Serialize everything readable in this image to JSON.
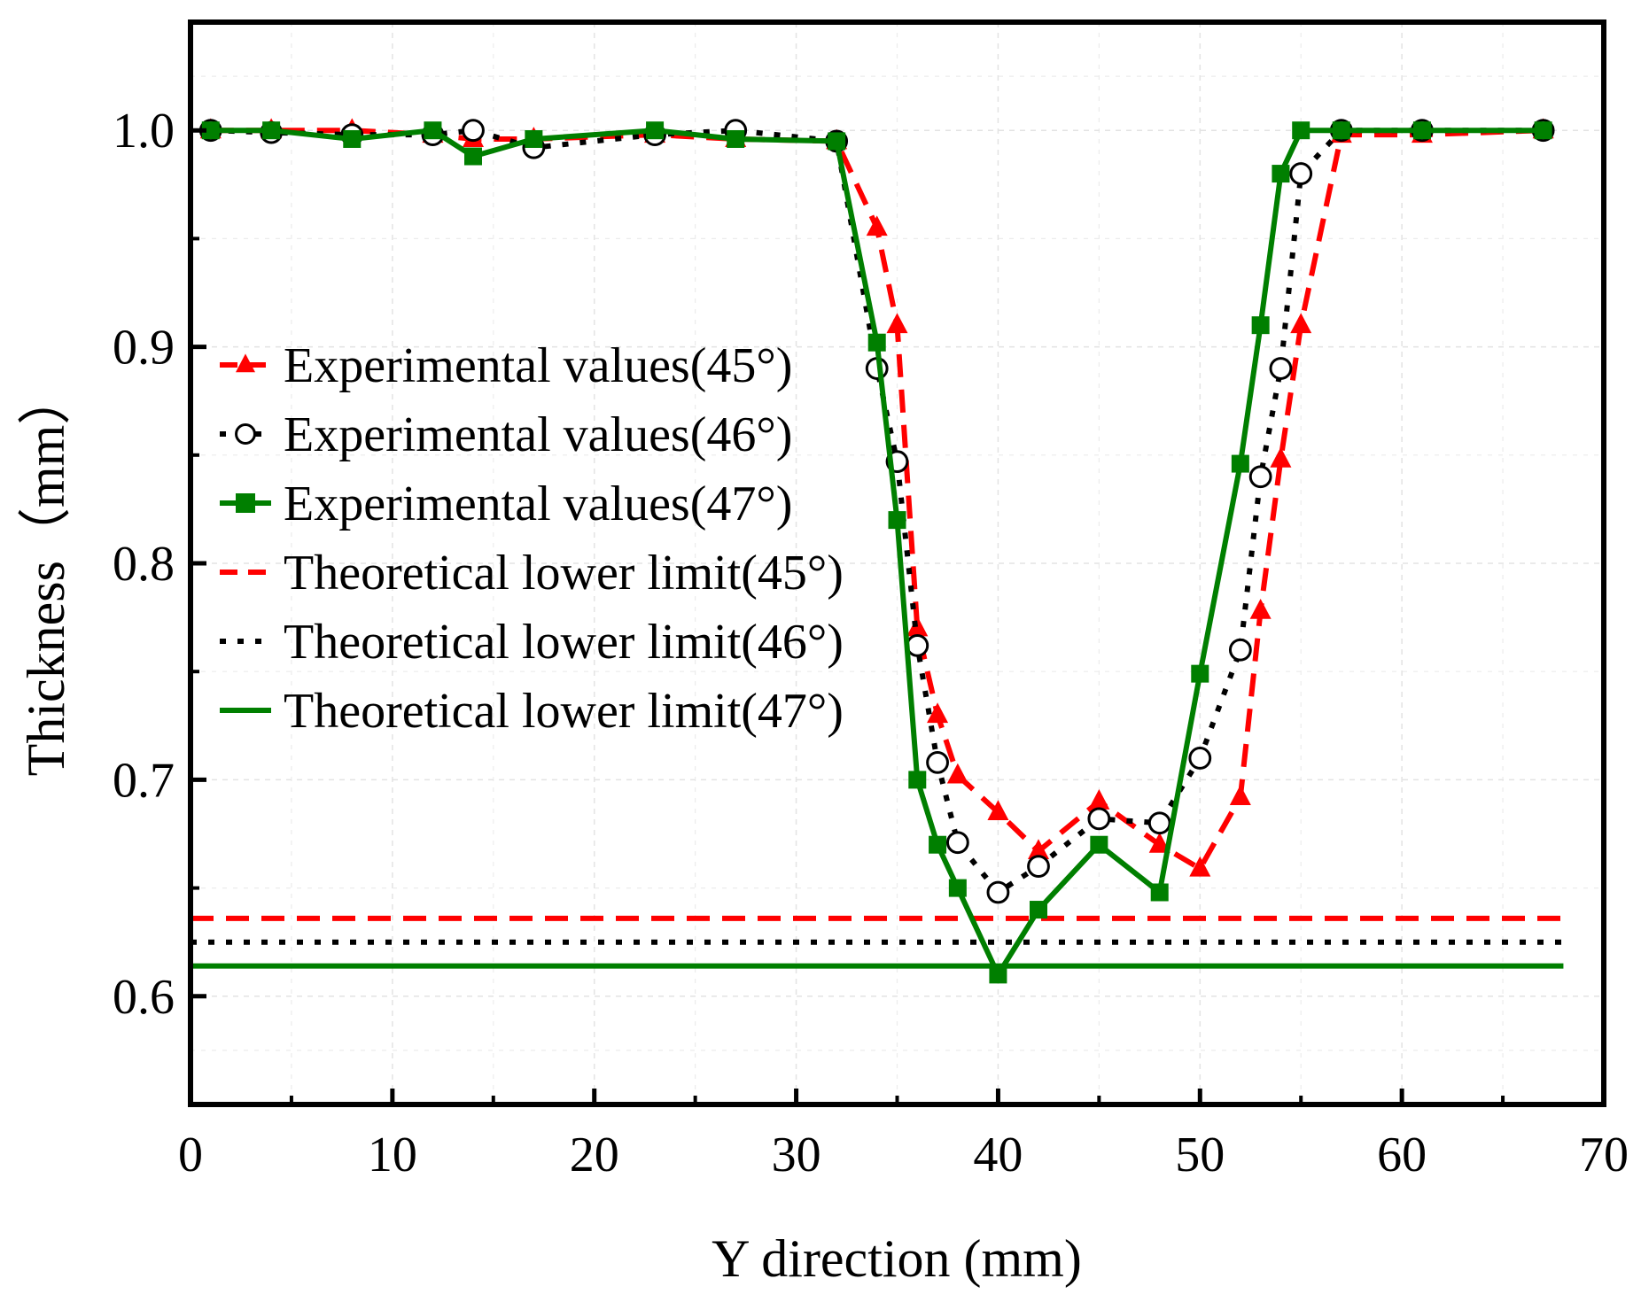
{
  "chart_data": {
    "type": "line",
    "title": "",
    "xlabel": "Y direction (mm)",
    "ylabel": "Thickness（mm）",
    "xlim": [
      0,
      70
    ],
    "ylim": [
      0.55,
      1.05
    ],
    "xticks": [
      0,
      10,
      20,
      30,
      40,
      50,
      60,
      70
    ],
    "xtick_labels": [
      "0",
      "10",
      "20",
      "30",
      "40",
      "50",
      "60",
      "70"
    ],
    "yticks": [
      0.6,
      0.7,
      0.8,
      0.9,
      1.0
    ],
    "ytick_labels": [
      "0.6",
      "0.7",
      "0.8",
      "0.9",
      "1.0"
    ],
    "grid": true,
    "legend_position": "center-left",
    "series": [
      {
        "name": "Experimental values(45°)",
        "style": "dashed",
        "marker": "triangle",
        "color": "#ff0000",
        "x": [
          1,
          4,
          8,
          12,
          14,
          17,
          23,
          27,
          32,
          34,
          35,
          36,
          37,
          38,
          40,
          42,
          45,
          48,
          50,
          52,
          53,
          54,
          55,
          57,
          61,
          67
        ],
        "y": [
          1.0,
          1.0,
          1.0,
          0.998,
          0.996,
          0.996,
          0.998,
          0.996,
          0.995,
          0.955,
          0.91,
          0.77,
          0.73,
          0.702,
          0.685,
          0.667,
          0.69,
          0.67,
          0.659,
          0.692,
          0.778,
          0.848,
          0.91,
          0.998,
          0.998,
          1.0
        ]
      },
      {
        "name": "Experimental values(46°)",
        "style": "dotted",
        "marker": "circle-open",
        "color": "#000000",
        "x": [
          1,
          4,
          8,
          12,
          14,
          17,
          23,
          27,
          32,
          34,
          35,
          36,
          37,
          38,
          40,
          42,
          45,
          48,
          50,
          52,
          53,
          54,
          55,
          57,
          61,
          67
        ],
        "y": [
          1.0,
          0.999,
          0.998,
          0.998,
          1.0,
          0.992,
          0.998,
          1.0,
          0.995,
          0.89,
          0.847,
          0.762,
          0.708,
          0.671,
          0.648,
          0.66,
          0.682,
          0.68,
          0.71,
          0.76,
          0.84,
          0.89,
          0.98,
          1.0,
          1.0,
          1.0
        ]
      },
      {
        "name": "Experimental values(47°)",
        "style": "solid",
        "marker": "square",
        "color": "#007f00",
        "x": [
          1,
          4,
          8,
          12,
          14,
          17,
          23,
          27,
          32,
          34,
          35,
          36,
          37,
          38,
          40,
          42,
          45,
          48,
          50,
          52,
          53,
          54,
          55,
          57,
          61,
          67
        ],
        "y": [
          1.0,
          1.0,
          0.996,
          1.0,
          0.988,
          0.996,
          1.0,
          0.996,
          0.995,
          0.902,
          0.82,
          0.7,
          0.67,
          0.65,
          0.61,
          0.64,
          0.67,
          0.648,
          0.749,
          0.846,
          0.91,
          0.98,
          1.0,
          1.0,
          1.0,
          1.0
        ]
      },
      {
        "name": "Theoretical lower limit(45°)",
        "style": "dashed",
        "marker": "none",
        "color": "#ff0000",
        "x": [
          0,
          68
        ],
        "y": [
          0.636,
          0.636
        ]
      },
      {
        "name": "Theoretical lower limit(46°)",
        "style": "dotted",
        "marker": "none",
        "color": "#000000",
        "x": [
          0,
          68
        ],
        "y": [
          0.625,
          0.625
        ]
      },
      {
        "name": "Theoretical lower limit(47°)",
        "style": "solid",
        "marker": "none",
        "color": "#007f00",
        "x": [
          0,
          68
        ],
        "y": [
          0.614,
          0.614
        ]
      }
    ]
  }
}
